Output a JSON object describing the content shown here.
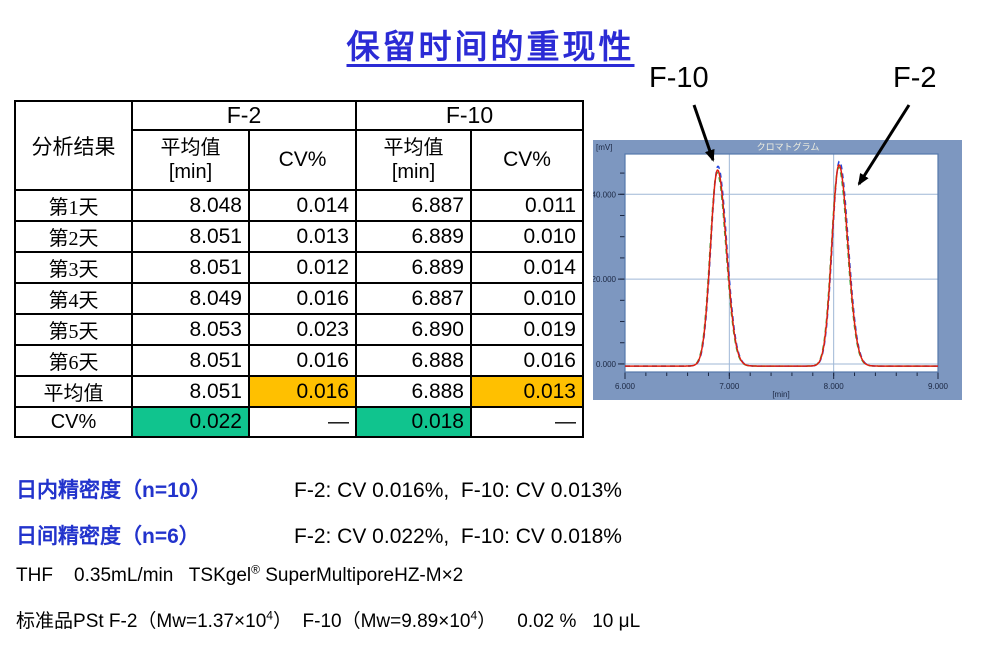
{
  "title": "保留时间的重现性",
  "colors": {
    "title_blue": "#2B2BD5",
    "precision_blue": "#2233CC",
    "highlight_orange": "#FFC000",
    "highlight_green": "#10C48E",
    "chart_bg": "#7D97C0",
    "chart_text": "#1B2742",
    "chart_title_text": "#F0EFDF",
    "chart_grid": "#9FB7D6",
    "chart_border": "#5578AB",
    "trace_red": "#DE2010",
    "trace_blue": "#2547E0",
    "trace_green": "#2EB440"
  },
  "table": {
    "corner_label": "分析结果",
    "groups": [
      "F-2",
      "F-10"
    ],
    "mean_label": "平均值",
    "mean_unit": "[min]",
    "cv_label": "CV%",
    "rows": [
      {
        "label": "第1天",
        "f2_mean": "8.048",
        "f2_cv": "0.014",
        "f10_mean": "6.887",
        "f10_cv": "0.011"
      },
      {
        "label": "第2天",
        "f2_mean": "8.051",
        "f2_cv": "0.013",
        "f10_mean": "6.889",
        "f10_cv": "0.010"
      },
      {
        "label": "第3天",
        "f2_mean": "8.051",
        "f2_cv": "0.012",
        "f10_mean": "6.889",
        "f10_cv": "0.014"
      },
      {
        "label": "第4天",
        "f2_mean": "8.049",
        "f2_cv": "0.016",
        "f10_mean": "6.887",
        "f10_cv": "0.010"
      },
      {
        "label": "第5天",
        "f2_mean": "8.053",
        "f2_cv": "0.023",
        "f10_mean": "6.890",
        "f10_cv": "0.019"
      },
      {
        "label": "第6天",
        "f2_mean": "8.051",
        "f2_cv": "0.016",
        "f10_mean": "6.888",
        "f10_cv": "0.016"
      },
      {
        "label": "平均值",
        "f2_mean": "8.051",
        "f2_cv": "0.016",
        "f10_mean": "6.888",
        "f10_cv": "0.013",
        "hl": {
          "f2_cv": "orange",
          "f10_cv": "orange"
        }
      },
      {
        "label": "CV%",
        "f2_mean": "0.022",
        "f2_cv": "—",
        "f10_mean": "0.018",
        "f10_cv": "—",
        "hl": {
          "f2_mean": "green",
          "f10_mean": "green"
        }
      }
    ]
  },
  "chart_data": {
    "type": "line",
    "title": "クロマトグラム",
    "ylabel": "[mV]",
    "xlabel": "[min]",
    "xlim": [
      6.0,
      9.0
    ],
    "ylim": [
      -1.9,
      49.5
    ],
    "x_ticks": [
      {
        "v": 6,
        "label": "6.000"
      },
      {
        "v": 7,
        "label": "7.000"
      },
      {
        "v": 8,
        "label": "8.000"
      },
      {
        "v": 9,
        "label": "9.000"
      }
    ],
    "x_minor_step": 0.2,
    "y_ticks": [
      {
        "v": 0,
        "label": "0.000"
      },
      {
        "v": 20,
        "label": "20.000"
      },
      {
        "v": 40,
        "label": "40.000"
      }
    ],
    "y_minor_step": 5,
    "baseline_mv": -0.5,
    "peaks": [
      {
        "name": "F-10",
        "center_min": 6.887,
        "height_mv": 46.2,
        "sigma_left_min": 0.068,
        "sigma_right_min": 0.085
      },
      {
        "name": "F-2",
        "center_min": 8.051,
        "height_mv": 47.4,
        "sigma_left_min": 0.068,
        "sigma_right_min": 0.085
      }
    ],
    "series": [
      {
        "name": "overlay-run-green",
        "color_key": "trace_green",
        "dash": "5 4",
        "height_offset_mv": -0.6,
        "center_offset_min": -0.004
      },
      {
        "name": "overlay-run-blue",
        "color_key": "trace_blue",
        "dash": "5 4",
        "height_offset_mv": 0.9,
        "center_offset_min": 0.004
      },
      {
        "name": "overlay-run-red",
        "color_key": "trace_red",
        "dash": null,
        "height_offset_mv": 0,
        "center_offset_min": 0
      }
    ],
    "annotations": [
      {
        "label": "F-10",
        "peak_x_min": 6.887
      },
      {
        "label": "F-2",
        "peak_x_min": 8.051
      }
    ],
    "legend": "none",
    "grid": "on"
  },
  "precision": [
    {
      "label_cjk": "日内精密度",
      "label_paren": "（n=10）",
      "value": "F-2: CV 0.016%,  F-10: CV 0.013%"
    },
    {
      "label_cjk": "日间精密度",
      "label_paren": "（n=6）",
      "value": "F-2: CV 0.022%,  F-10: CV 0.018%"
    }
  ],
  "conditions": {
    "line1_pre": "THF    0.35mL/min   TSKgel",
    "line1_sup": "®",
    "line1_post": " SuperMultiporeHZ-M×2",
    "line2_cjk": "标准品",
    "line2_a": "PSt F-2（Mw=1.37×10",
    "line2_sup1": "4",
    "line2_b": "）  F-10（Mw=9.89×10",
    "line2_sup2": "4",
    "line2_c": "）    0.02 %   10 μL"
  }
}
